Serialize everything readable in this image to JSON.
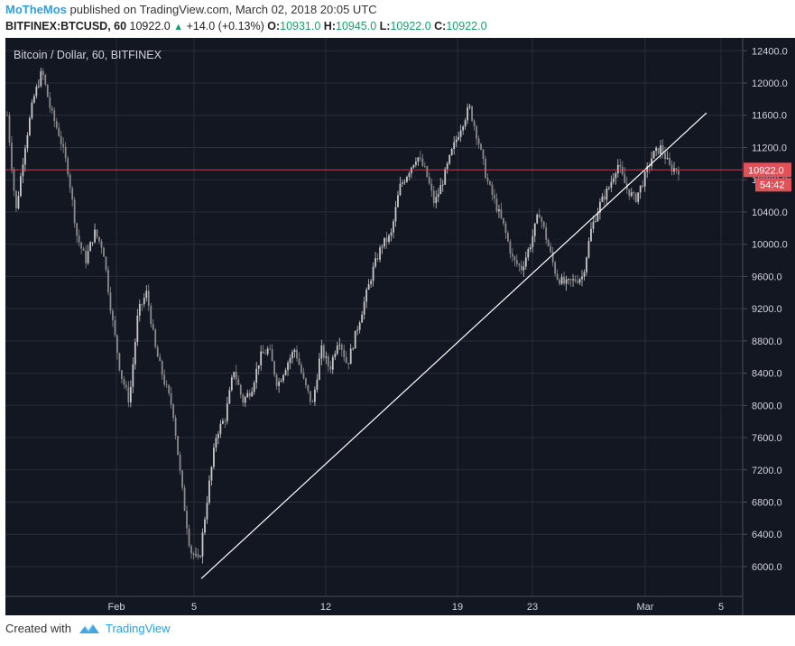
{
  "header": {
    "user": "MoTheMos",
    "published": "published on TradingView.com, March 02, 2018 20:05 UTC",
    "symbol": "BITFINEX:BTCUSD, 60",
    "last": "10922.0",
    "change": "+14.0 (+0.13%)",
    "o_label": "O:",
    "o": "10931.0",
    "h_label": "H:",
    "h": "10945.0",
    "l_label": "L:",
    "l": "10922.0",
    "c_label": "C:",
    "c": "10922.0"
  },
  "footer": {
    "created_with": "Created with",
    "brand": "TradingView",
    "logo_icon": "tradingview-logo-icon"
  },
  "chart_data": {
    "type": "line",
    "legend_text": "Bitcoin / Dollar, 60, BITFINEX",
    "ylim": [
      5630,
      12560
    ],
    "y_ticks": [
      "12400.0",
      "12000.0",
      "11600.0",
      "11200.0",
      "10800.0",
      "10400.0",
      "10000.0",
      "9600.0",
      "9200.0",
      "8800.0",
      "8400.0",
      "8000.0",
      "7600.0",
      "7200.0",
      "6800.0",
      "6400.0",
      "6000.0"
    ],
    "x_ticks": [
      "Feb",
      "5",
      "12",
      "19",
      "23",
      "Mar",
      "5"
    ],
    "last_price_label": "10922.0",
    "countdown_label": "54:42",
    "colors": {
      "background": "#131722",
      "grid": "#2a2e39",
      "up": "#c8c8c8",
      "down": "#8a8a8a",
      "last_price": "#e0525a",
      "trendline": "#ffffff"
    },
    "trendline": {
      "x": [
        "Feb 5",
        "Mar 4"
      ],
      "y": [
        5850,
        11630
      ]
    },
    "series": [
      {
        "values": [
          11600,
          10400,
          11200,
          11800,
          12150,
          11650,
          11350,
          10900,
          10100,
          9800,
          10150,
          9950,
          9100,
          8400,
          8050,
          9150,
          9400,
          8700,
          8300,
          7950,
          7000,
          6200,
          6050,
          6900,
          7650,
          7850,
          8450,
          8050,
          8200,
          8600,
          8700,
          8250,
          8500,
          8700,
          8300,
          8000,
          8700,
          8450,
          8850,
          8500,
          8900,
          9300,
          9700,
          10000,
          10100,
          10700,
          10900,
          11100,
          10900,
          10500,
          10800,
          11150,
          11450,
          11700,
          11300,
          10800,
          10500,
          10200,
          9800,
          9700,
          10000,
          10400,
          10000,
          9600,
          9500,
          9550,
          9600,
          10200,
          10500,
          10700,
          11000,
          10700,
          10550,
          10800,
          11100,
          11200,
          10950,
          10922
        ]
      }
    ]
  }
}
